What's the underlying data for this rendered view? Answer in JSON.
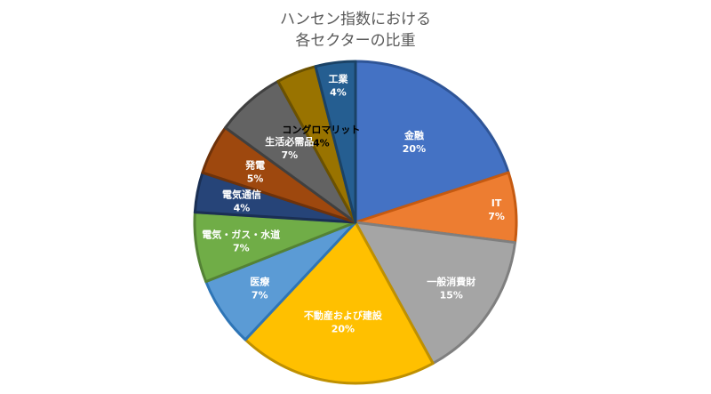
{
  "chart_data": {
    "type": "pie",
    "title_lines": [
      "ハンセン指数における",
      "各セクターの比重"
    ],
    "start_angle_deg": 0,
    "direction": "clockwise",
    "slices": [
      {
        "name": "金融",
        "value": 20,
        "label": "20%",
        "color": "#4472C4",
        "edge": "#2F5597"
      },
      {
        "name": "IT",
        "value": 7,
        "label": "7%",
        "color": "#ED7D31",
        "edge": "#C55A11"
      },
      {
        "name": "一般消費財",
        "value": 15,
        "label": "15%",
        "color": "#A5A5A5",
        "edge": "#7F7F7F"
      },
      {
        "name": "不動産および建設",
        "value": 20,
        "label": "20%",
        "color": "#FFC000",
        "edge": "#BF9000"
      },
      {
        "name": "医療",
        "value": 7,
        "label": "7%",
        "color": "#5B9BD5",
        "edge": "#2E75B6"
      },
      {
        "name": "電気・ガス・水道",
        "value": 7,
        "label": "7%",
        "color": "#70AD47",
        "edge": "#548235"
      },
      {
        "name": "電気通信",
        "value": 4,
        "label": "4%",
        "color": "#264478",
        "edge": "#1A2F54"
      },
      {
        "name": "発電",
        "value": 5,
        "label": "5%",
        "color": "#9E480E",
        "edge": "#6E320A"
      },
      {
        "name": "生活必需品",
        "value": 7,
        "label": "7%",
        "color": "#636363",
        "edge": "#404040"
      },
      {
        "name": "コングロマリット",
        "value": 4,
        "label": "4%",
        "color": "#997300",
        "edge": "#6B5100",
        "dark_label": true
      },
      {
        "name": "工業",
        "value": 4,
        "label": "4%",
        "color": "#255E91",
        "edge": "#1A4266"
      }
    ]
  }
}
